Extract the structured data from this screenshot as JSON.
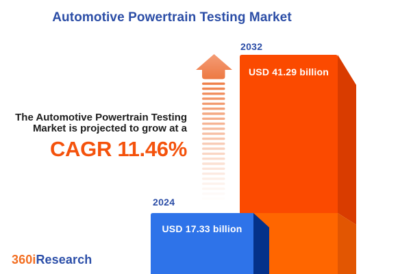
{
  "title": "Automotive Powertrain Testing Market",
  "description": {
    "line1": "The Automotive Powertrain Testing",
    "line2": "Market is projected to grow at a",
    "cagr_label": "CAGR 11.46%"
  },
  "bars": [
    {
      "year": "2024",
      "value_label": "USD 17.33 billion",
      "front_color": "#2E73E9",
      "side_color": "#04318A"
    },
    {
      "year": "2032",
      "value_label": "USD 41.29 billion",
      "front_color": "#FB4A00",
      "front_color_lower": "#FF6600",
      "side_color": "#D93C00",
      "side_color_lower": "#E25602"
    }
  ],
  "chart_data": {
    "type": "bar",
    "title": "Automotive Powertrain Testing Market",
    "categories": [
      "2024",
      "2032"
    ],
    "values": [
      17.33,
      41.29
    ],
    "unit": "USD billion",
    "value_labels": [
      "USD 17.33 billion",
      "USD 41.29 billion"
    ],
    "cagr_percent": 11.46,
    "annotation": "The Automotive Powertrain Testing Market is projected to grow at a CAGR 11.46%",
    "legend": false,
    "grid": false,
    "series_colors": [
      "#2E73E9",
      "#FB4A00"
    ]
  },
  "logo": {
    "prefix": "360i",
    "suffix": "Research"
  },
  "colors": {
    "background": "#FFFFFF",
    "title_blue": "#2B4DA6",
    "text_dark": "#1B1B1B",
    "cagr_orange": "#F4520C",
    "logo_orange": "#F26E21",
    "logo_blue": "#2B4EA8",
    "arrow_orange": "#EF8049",
    "arrow_head_top": "#F49C76",
    "arrow_head_bottom": "#ED7943"
  }
}
